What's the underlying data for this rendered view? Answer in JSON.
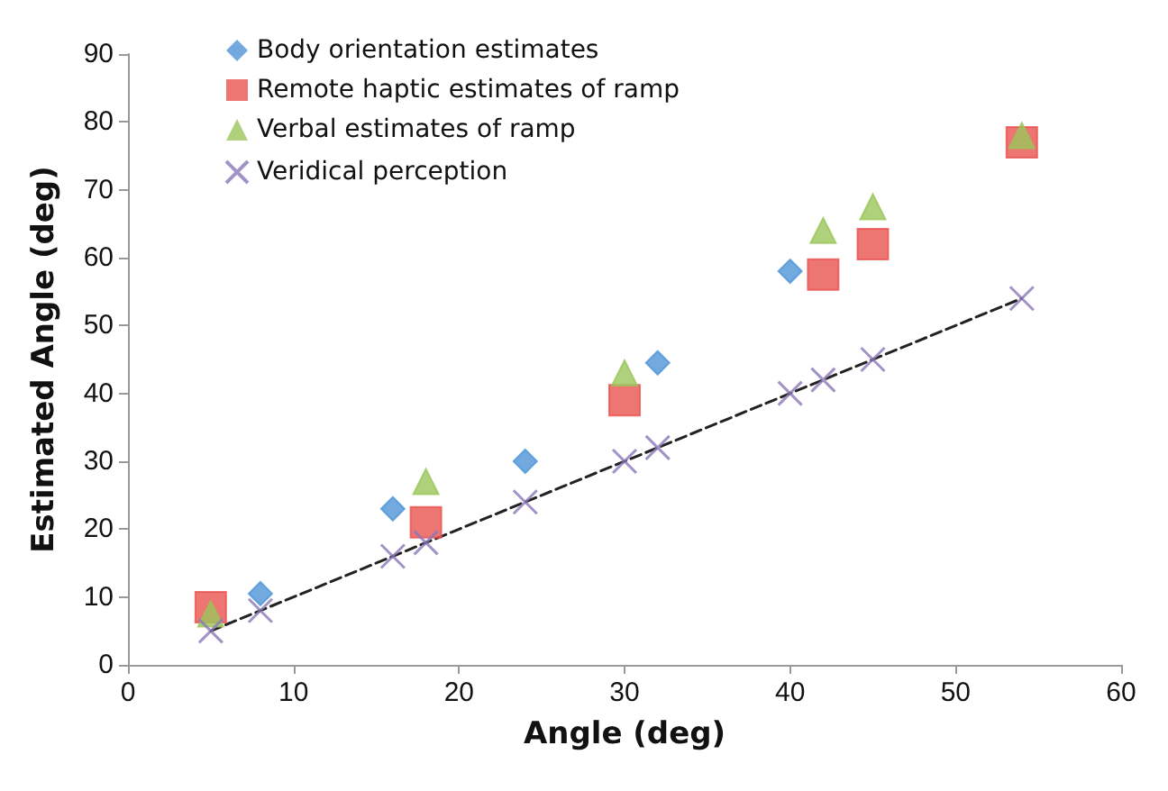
{
  "chart_data": {
    "type": "scatter",
    "xlabel": "Angle (deg)",
    "ylabel": "Estimated Angle (deg)",
    "xlim": [
      0,
      60
    ],
    "xticks": [
      0,
      10,
      20,
      30,
      40,
      50,
      60
    ],
    "ylim": [
      0,
      90
    ],
    "yticks": [
      0,
      10,
      20,
      30,
      40,
      50,
      60,
      70,
      80,
      90
    ],
    "grid": false,
    "legend": "top left",
    "series": [
      {
        "type": "line",
        "color": "#222222",
        "line_style": "dashed",
        "marker": "none",
        "x": [
          5,
          54
        ],
        "values": [
          5,
          54
        ]
      },
      {
        "name": "Body orientation estimates",
        "color": "#4f95d8",
        "marker": "diamond",
        "x": [
          8,
          16,
          24,
          32,
          40
        ],
        "values": [
          10.5,
          23,
          30,
          44.5,
          58
        ]
      },
      {
        "name": "Remote haptic estimates of ramp",
        "color": "#e8534f",
        "marker": "square",
        "x": [
          5,
          18,
          30,
          42,
          45,
          54
        ],
        "values": [
          8.5,
          21,
          39,
          57.5,
          62,
          77
        ]
      },
      {
        "name": "Verbal estimates of ramp",
        "color": "#9bc55a",
        "marker": "triangle",
        "x": [
          5,
          18,
          30,
          42,
          45,
          54
        ],
        "values": [
          7.5,
          27,
          43,
          64,
          67.5,
          78
        ]
      },
      {
        "name": "Veridical perception",
        "color": "#8a78b8",
        "marker": "cross",
        "x": [
          5,
          8,
          16,
          18,
          24,
          30,
          32,
          40,
          42,
          45,
          54
        ],
        "values": [
          5,
          8,
          16,
          18,
          24,
          30,
          32,
          40,
          42,
          45,
          54
        ]
      }
    ]
  }
}
